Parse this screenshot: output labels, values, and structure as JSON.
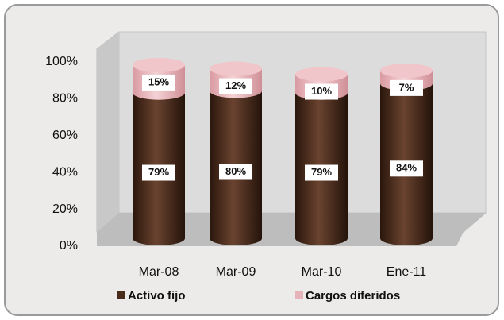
{
  "chart_data": {
    "type": "stacked_bar",
    "categories": [
      "Mar-08",
      "Mar-09",
      "Mar-10",
      "Ene-11"
    ],
    "series": [
      {
        "name": "Activo fijo",
        "color": "#4a2c1c",
        "values": [
          79,
          80,
          79,
          84
        ],
        "value_labels": [
          "79%",
          "80%",
          "79%",
          "84%"
        ]
      },
      {
        "name": "Cargos diferidos",
        "color": "#e6b3b8",
        "values": [
          15,
          12,
          10,
          7
        ],
        "value_labels": [
          "15%",
          "12%",
          "10%",
          "7%"
        ]
      }
    ],
    "ylim": [
      0,
      100
    ],
    "yticks": [
      {
        "value": 0,
        "label": "0%"
      },
      {
        "value": 20,
        "label": "20%"
      },
      {
        "value": 40,
        "label": "40%"
      },
      {
        "value": 60,
        "label": "60%"
      },
      {
        "value": 80,
        "label": "80%"
      },
      {
        "value": 100,
        "label": "100%"
      }
    ]
  }
}
